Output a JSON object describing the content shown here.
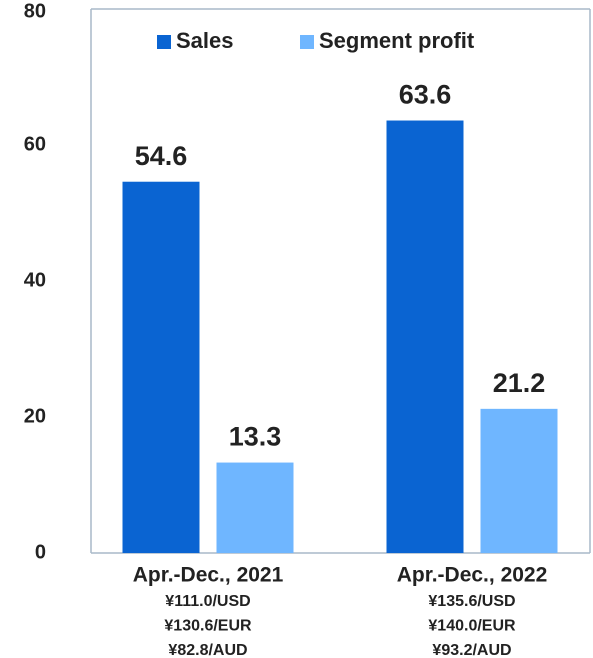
{
  "chart_data": {
    "type": "bar",
    "categories": [
      "Apr.-Dec., 2021",
      "Apr.-Dec., 2022"
    ],
    "category_sublabels": [
      [
        "¥111.0/USD",
        "¥130.6/EUR",
        "¥82.8/AUD"
      ],
      [
        "¥135.6/USD",
        "¥140.0/EUR",
        "¥93.2/AUD"
      ]
    ],
    "series": [
      {
        "name": "Sales",
        "color": "#0a64d2",
        "values": [
          54.6,
          63.6
        ]
      },
      {
        "name": "Segment profit",
        "color": "#6fb6ff",
        "values": [
          13.3,
          21.2
        ]
      }
    ],
    "ylim": [
      0,
      80
    ],
    "yticks": [
      0,
      20,
      40,
      60,
      80
    ],
    "grid": false,
    "legend": "top"
  }
}
